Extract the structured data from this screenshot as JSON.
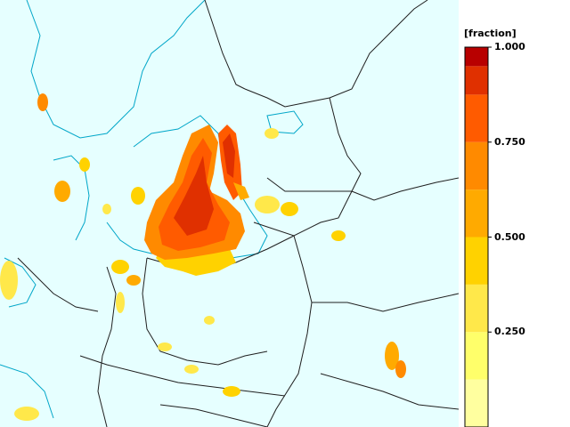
{
  "map": {
    "background_color": "#e6ffff",
    "land_border_color": "#1f1f1f",
    "coast_color": "#00a6c8"
  },
  "legend": {
    "title": "[fraction]",
    "range": [
      0.0,
      1.0
    ],
    "bands": [
      {
        "from": 0.0,
        "to": 0.125,
        "color": "#ffff9f"
      },
      {
        "from": 0.125,
        "to": 0.25,
        "color": "#ffff6a"
      },
      {
        "from": 0.25,
        "to": 0.375,
        "color": "#ffe84a"
      },
      {
        "from": 0.375,
        "to": 0.5,
        "color": "#ffd200"
      },
      {
        "from": 0.5,
        "to": 0.625,
        "color": "#ffaa00"
      },
      {
        "from": 0.625,
        "to": 0.75,
        "color": "#ff8a00"
      },
      {
        "from": 0.75,
        "to": 0.875,
        "color": "#ff5b00"
      },
      {
        "from": 0.875,
        "to": 0.95,
        "color": "#e03000"
      },
      {
        "from": 0.95,
        "to": 1.0,
        "color": "#b80000"
      }
    ],
    "ticks": [
      {
        "value": 0.25,
        "label": "0.250"
      },
      {
        "value": 0.5,
        "label": "0.500"
      },
      {
        "value": 0.75,
        "label": "0.750"
      },
      {
        "value": 1.0,
        "label": "1.000"
      }
    ]
  }
}
